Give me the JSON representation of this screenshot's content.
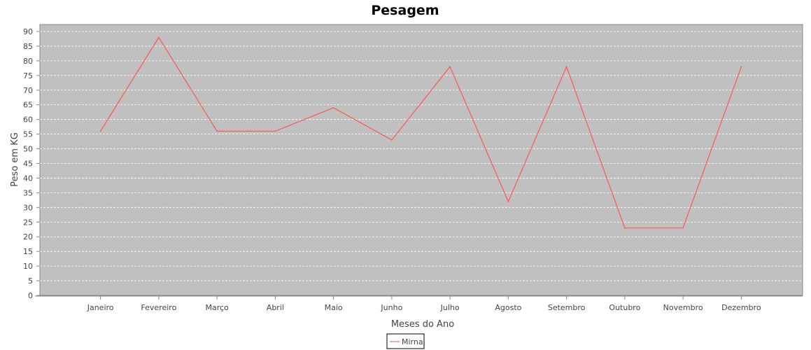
{
  "chart_data": {
    "type": "line",
    "title": "Pesagem",
    "xlabel": "Meses do Ano",
    "ylabel": "Peso em KG",
    "categories": [
      "Janeiro",
      "Fevereiro",
      "Março",
      "Abril",
      "Maio",
      "Junho",
      "Julho",
      "Agosto",
      "Setembro",
      "Outubro",
      "Novembro",
      "Dezembro"
    ],
    "series": [
      {
        "name": "Mirna",
        "values": [
          56,
          88,
          56,
          56,
          64,
          53,
          78,
          32,
          78,
          23,
          23,
          78
        ]
      }
    ],
    "ylim": [
      0,
      90
    ],
    "yticks": [
      0,
      5,
      10,
      15,
      20,
      25,
      30,
      35,
      40,
      45,
      50,
      55,
      60,
      65,
      70,
      75,
      80,
      85,
      90
    ],
    "grid": true,
    "legend_position": "bottom-center",
    "colors": {
      "plot_background": "#c0c0c0",
      "gridline": "#ffffff",
      "series_line": "#ff5555"
    }
  }
}
